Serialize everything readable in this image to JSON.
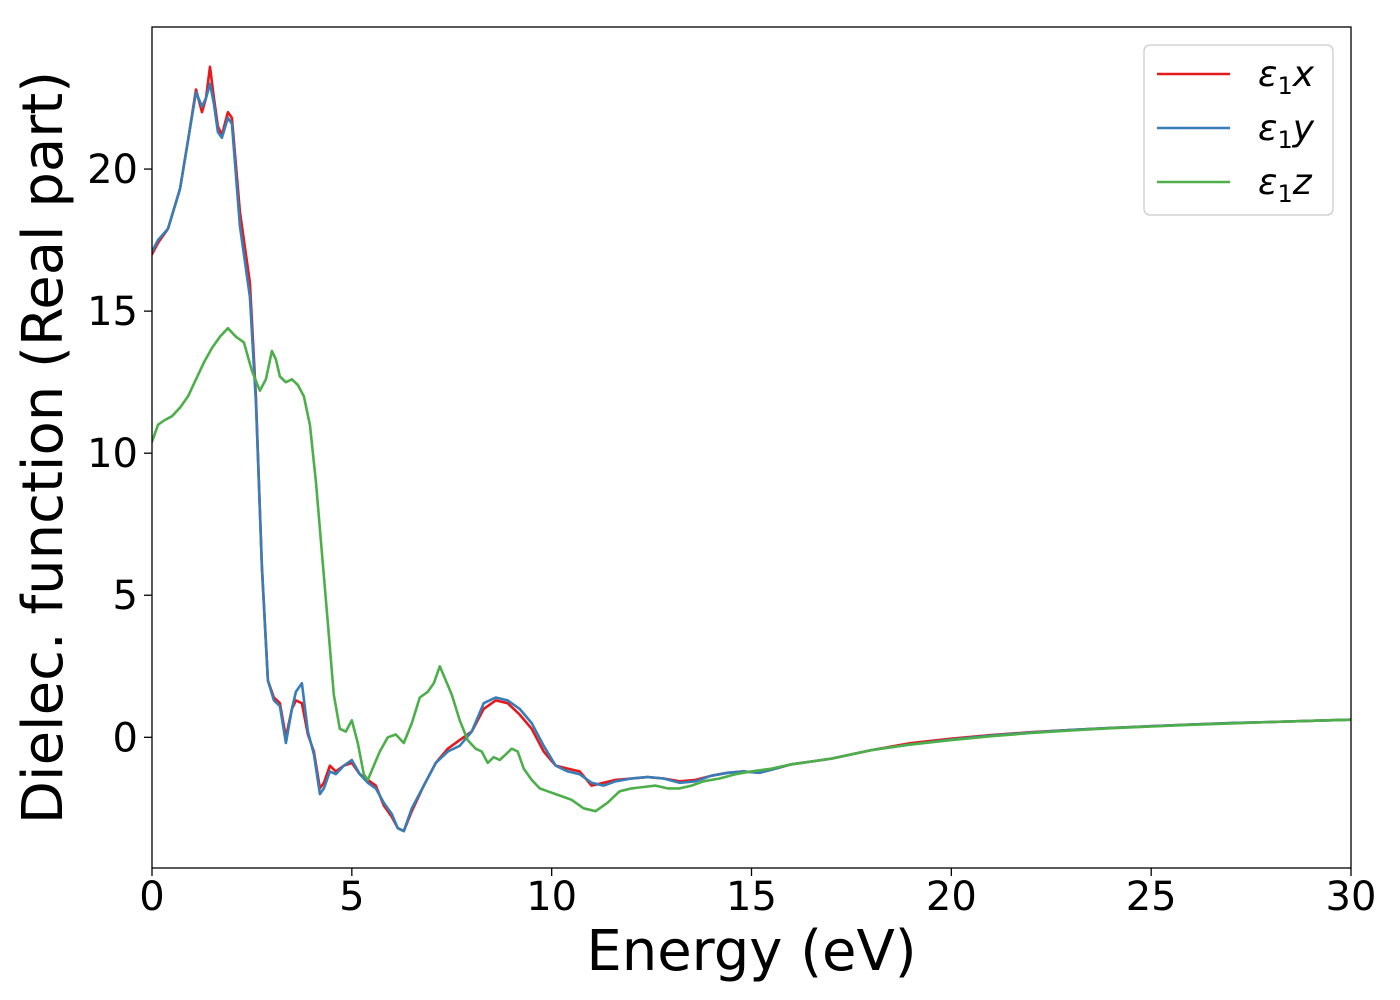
{
  "chart_data": {
    "type": "line",
    "xlabel": "Energy (eV)",
    "ylabel": "Dielec. function (Real part)",
    "xlim": [
      0,
      30
    ],
    "ylim": [
      -4.6,
      25.0
    ],
    "xticks": [
      0,
      5,
      10,
      15,
      20,
      25,
      30
    ],
    "yticks": [
      0,
      5,
      10,
      15,
      20
    ],
    "grid": false,
    "legend_position": "top-right",
    "series": [
      {
        "name": "ε₁x",
        "legend_base": "ε",
        "legend_sub": "1",
        "legend_suffix": "x",
        "color": "#e41a1c",
        "x": [
          0,
          0.15,
          0.4,
          0.7,
          0.9,
          1.1,
          1.25,
          1.35,
          1.45,
          1.55,
          1.65,
          1.75,
          1.9,
          2.0,
          2.2,
          2.45,
          2.6,
          2.75,
          2.9,
          3.05,
          3.2,
          3.35,
          3.5,
          3.6,
          3.75,
          3.9,
          4.05,
          4.2,
          4.3,
          4.45,
          4.6,
          4.8,
          5.0,
          5.2,
          5.4,
          5.6,
          5.8,
          6.0,
          6.15,
          6.3,
          6.5,
          6.8,
          7.1,
          7.4,
          7.7,
          8.0,
          8.3,
          8.6,
          8.9,
          9.2,
          9.5,
          9.8,
          10.1,
          10.4,
          10.7,
          11.0,
          11.3,
          11.6,
          12.0,
          12.4,
          12.8,
          13.2,
          13.6,
          14.0,
          14.4,
          14.8,
          15.2,
          15.6,
          16.0,
          16.5,
          17.0,
          17.5,
          18.0,
          19.0,
          20.0,
          21.0,
          22.0,
          23.0,
          24.0,
          25.0,
          26.0,
          27.0,
          28.0,
          29.0,
          30.0
        ],
        "values": [
          17.0,
          17.4,
          17.9,
          19.3,
          21.0,
          22.8,
          22.0,
          22.5,
          23.6,
          22.5,
          21.5,
          21.2,
          22.0,
          21.8,
          18.5,
          16.0,
          12.0,
          6.0,
          2.0,
          1.4,
          1.2,
          0.0,
          1.0,
          1.3,
          1.2,
          0.1,
          -0.5,
          -1.8,
          -1.6,
          -1.0,
          -1.2,
          -1.0,
          -0.9,
          -1.3,
          -1.5,
          -1.7,
          -2.4,
          -2.8,
          -3.2,
          -3.3,
          -2.6,
          -1.7,
          -0.9,
          -0.4,
          -0.1,
          0.2,
          1.0,
          1.3,
          1.2,
          0.8,
          0.3,
          -0.5,
          -1.0,
          -1.1,
          -1.2,
          -1.7,
          -1.6,
          -1.5,
          -1.45,
          -1.4,
          -1.45,
          -1.55,
          -1.5,
          -1.35,
          -1.25,
          -1.2,
          -1.25,
          -1.1,
          -0.95,
          -0.85,
          -0.75,
          -0.6,
          -0.45,
          -0.2,
          -0.05,
          0.08,
          0.18,
          0.26,
          0.33,
          0.39,
          0.45,
          0.5,
          0.54,
          0.58,
          0.62
        ]
      },
      {
        "name": "ε₁y",
        "legend_base": "ε",
        "legend_sub": "1",
        "legend_suffix": "y",
        "color": "#377eb8",
        "x": [
          0,
          0.15,
          0.4,
          0.7,
          0.9,
          1.1,
          1.25,
          1.35,
          1.45,
          1.55,
          1.65,
          1.75,
          1.9,
          2.0,
          2.2,
          2.45,
          2.6,
          2.75,
          2.9,
          3.05,
          3.2,
          3.35,
          3.5,
          3.6,
          3.75,
          3.9,
          4.05,
          4.2,
          4.3,
          4.45,
          4.6,
          4.8,
          5.0,
          5.2,
          5.4,
          5.6,
          5.8,
          6.0,
          6.15,
          6.3,
          6.5,
          6.8,
          7.1,
          7.4,
          7.7,
          8.0,
          8.3,
          8.6,
          8.9,
          9.2,
          9.5,
          9.8,
          10.1,
          10.4,
          10.7,
          11.0,
          11.3,
          11.6,
          12.0,
          12.4,
          12.8,
          13.2,
          13.6,
          14.0,
          14.4,
          14.8,
          15.2,
          15.6,
          16.0,
          16.5,
          17.0,
          17.5,
          18.0,
          19.0,
          20.0,
          21.0,
          22.0,
          23.0,
          24.0,
          25.0,
          26.0,
          27.0,
          28.0,
          29.0,
          30.0
        ],
        "values": [
          17.1,
          17.5,
          17.9,
          19.3,
          21.0,
          22.7,
          22.2,
          22.5,
          23.0,
          22.3,
          21.3,
          21.1,
          21.8,
          21.6,
          18.0,
          15.5,
          11.8,
          6.0,
          2.0,
          1.3,
          1.1,
          -0.2,
          1.0,
          1.6,
          1.9,
          0.2,
          -0.6,
          -2.0,
          -1.8,
          -1.2,
          -1.3,
          -1.0,
          -0.8,
          -1.3,
          -1.6,
          -1.8,
          -2.3,
          -2.7,
          -3.2,
          -3.3,
          -2.5,
          -1.7,
          -0.9,
          -0.5,
          -0.3,
          0.2,
          1.2,
          1.4,
          1.3,
          1.0,
          0.5,
          -0.3,
          -1.0,
          -1.2,
          -1.3,
          -1.6,
          -1.7,
          -1.55,
          -1.45,
          -1.4,
          -1.45,
          -1.6,
          -1.55,
          -1.35,
          -1.25,
          -1.2,
          -1.25,
          -1.1,
          -0.95,
          -0.85,
          -0.75,
          -0.6,
          -0.45,
          -0.25,
          -0.08,
          0.06,
          0.17,
          0.26,
          0.33,
          0.39,
          0.45,
          0.5,
          0.54,
          0.58,
          0.62
        ]
      },
      {
        "name": "ε₁z",
        "legend_base": "ε",
        "legend_sub": "1",
        "legend_suffix": "z",
        "color": "#4daf4a",
        "x": [
          0,
          0.15,
          0.3,
          0.5,
          0.7,
          0.9,
          1.1,
          1.3,
          1.5,
          1.7,
          1.9,
          2.1,
          2.3,
          2.5,
          2.7,
          2.85,
          3.0,
          3.1,
          3.2,
          3.35,
          3.5,
          3.65,
          3.8,
          3.95,
          4.1,
          4.25,
          4.4,
          4.55,
          4.7,
          4.85,
          5.0,
          5.15,
          5.3,
          5.4,
          5.55,
          5.7,
          5.9,
          6.1,
          6.3,
          6.5,
          6.7,
          6.9,
          7.05,
          7.2,
          7.35,
          7.5,
          7.7,
          7.9,
          8.1,
          8.25,
          8.4,
          8.55,
          8.7,
          8.85,
          9.0,
          9.15,
          9.3,
          9.5,
          9.7,
          9.9,
          10.1,
          10.3,
          10.5,
          10.8,
          11.1,
          11.4,
          11.7,
          12.0,
          12.3,
          12.6,
          12.9,
          13.2,
          13.5,
          13.8,
          14.2,
          14.6,
          15.0,
          15.5,
          16.0,
          16.5,
          17.0,
          17.5,
          18.0,
          19.0,
          20.0,
          21.0,
          22.0,
          23.0,
          24.0,
          25.0,
          26.0,
          27.0,
          28.0,
          29.0,
          30.0
        ],
        "values": [
          10.4,
          11.0,
          11.15,
          11.3,
          11.6,
          12.0,
          12.6,
          13.2,
          13.7,
          14.1,
          14.4,
          14.1,
          13.9,
          12.9,
          12.2,
          12.6,
          13.6,
          13.3,
          12.7,
          12.5,
          12.6,
          12.4,
          12.0,
          11.0,
          9.0,
          6.5,
          4.0,
          1.5,
          0.3,
          0.2,
          0.6,
          -0.2,
          -1.3,
          -1.5,
          -1.0,
          -0.5,
          0.0,
          0.1,
          -0.2,
          0.5,
          1.4,
          1.6,
          1.9,
          2.5,
          2.0,
          1.5,
          0.6,
          -0.1,
          -0.4,
          -0.5,
          -0.9,
          -0.7,
          -0.8,
          -0.6,
          -0.4,
          -0.5,
          -1.1,
          -1.5,
          -1.8,
          -1.9,
          -2.0,
          -2.1,
          -2.2,
          -2.5,
          -2.6,
          -2.3,
          -1.9,
          -1.8,
          -1.75,
          -1.7,
          -1.8,
          -1.8,
          -1.7,
          -1.55,
          -1.45,
          -1.3,
          -1.2,
          -1.1,
          -0.95,
          -0.85,
          -0.75,
          -0.6,
          -0.45,
          -0.25,
          -0.1,
          0.04,
          0.15,
          0.24,
          0.32,
          0.38,
          0.44,
          0.49,
          0.54,
          0.58,
          0.62
        ]
      }
    ]
  }
}
